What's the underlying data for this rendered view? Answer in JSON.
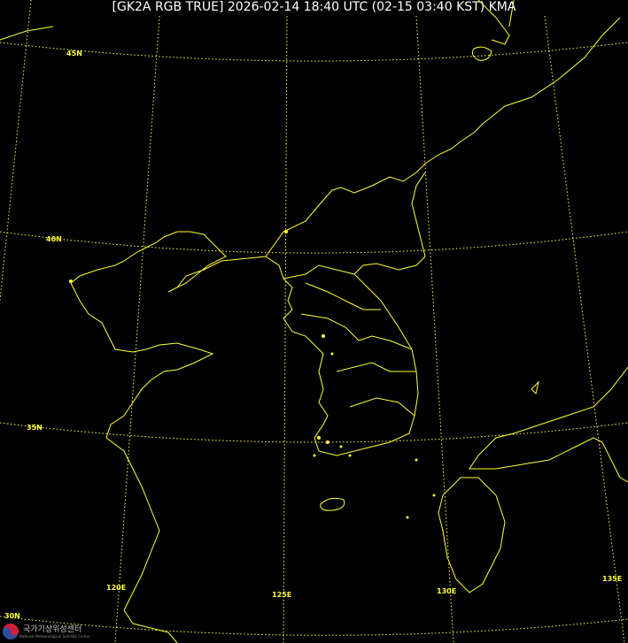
{
  "title": "[GK2A RGB TRUE] 2026-02-14 18:40 UTC (02-15 03:40 KST) KMA",
  "latitude_labels": [
    "45N",
    "40N",
    "35N",
    "30N"
  ],
  "longitude_labels": [
    "120E",
    "125E",
    "130E",
    "135E"
  ],
  "logo": {
    "name": "국가기상위성센터",
    "subtitle": "National Meteorological Satellite Center"
  },
  "colors": {
    "background": "#000000",
    "coastline": "#ffff33",
    "graticule": "#ffff33",
    "title": "#ffffff"
  }
}
